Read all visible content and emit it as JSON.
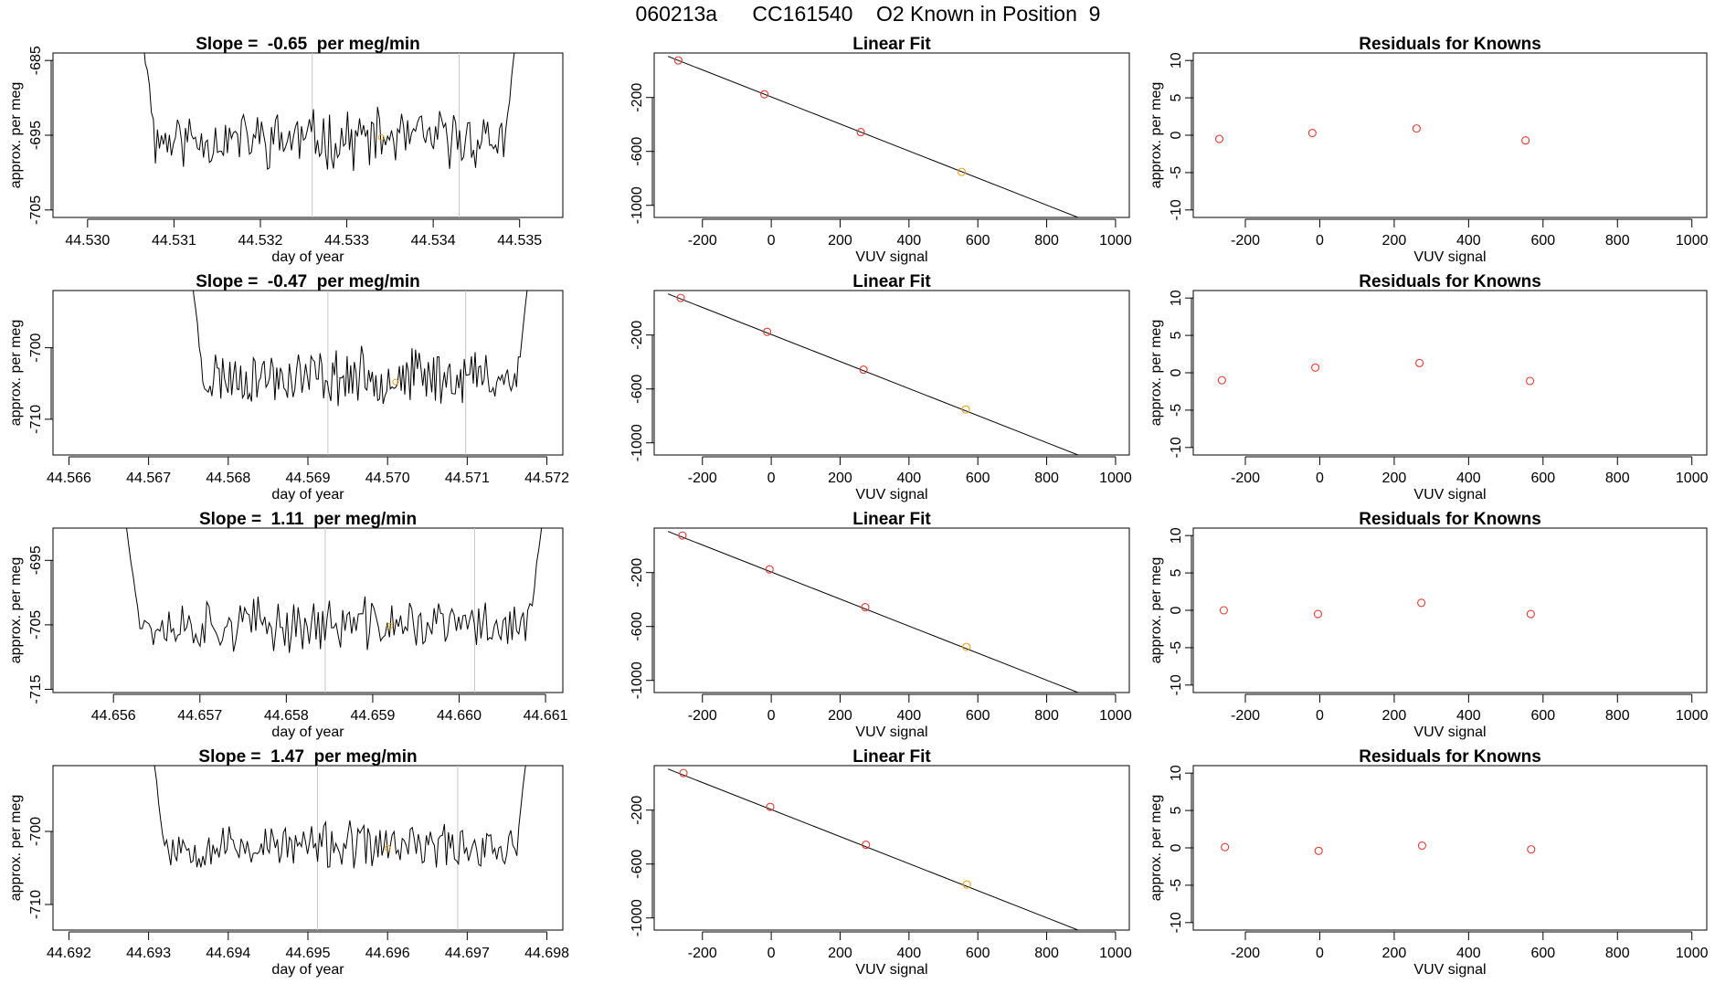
{
  "page_title": "060213a      CC161540    O2 Known in Position  9",
  "colors": {
    "trace": "#000000",
    "fit_point": "#e03c31",
    "unknown_point": "#e8a020",
    "marker_line": "#c8c8c8"
  },
  "chart_data": [
    {
      "type": "line",
      "id": "r1-timeseries",
      "title": "Slope =  -0.65  per meg/min",
      "xlabel": "day of year",
      "ylabel": "approx. per meg",
      "xlim": [
        44.5296,
        44.5355
      ],
      "ylim": [
        -706,
        -684
      ],
      "xticks": [
        "44.530",
        "44.531",
        "44.532",
        "44.533",
        "44.534",
        "44.535"
      ],
      "yticks": [
        "-685",
        "-695",
        "-705"
      ],
      "trace_start": 44.5306,
      "trace_end": 44.535,
      "base": -695.5,
      "noise": 3.2,
      "seed": 11,
      "markers": [
        44.5326,
        44.5343
      ],
      "unknown_point": [
        44.5334,
        -695.3
      ]
    },
    {
      "type": "scatter",
      "id": "r1-linear-fit",
      "title": "Linear Fit",
      "xlabel": "VUV signal",
      "ylabel": "",
      "xlim": [
        -340,
        1040
      ],
      "ylim": [
        -1090,
        130
      ],
      "xticks": [
        "-200",
        "0",
        "200",
        "400",
        "600",
        "800",
        "1000"
      ],
      "yticks": [
        "-200",
        "-600",
        "-1000"
      ],
      "points": [
        {
          "x": -270,
          "y": 75
        },
        {
          "x": -20,
          "y": -176
        },
        {
          "x": 260,
          "y": -457
        }
      ],
      "unknown": [
        {
          "x": 553,
          "y": -752
        }
      ],
      "fit_line": [
        {
          "x": -300,
          "y": 105
        },
        {
          "x": 1000,
          "y": -1199
        }
      ]
    },
    {
      "type": "scatter",
      "id": "r1-residuals",
      "title": "Residuals for Knowns",
      "xlabel": "VUV signal",
      "ylabel": "approx. per meg",
      "xlim": [
        -340,
        1040
      ],
      "ylim": [
        -11,
        11
      ],
      "xticks": [
        "-200",
        "0",
        "200",
        "400",
        "600",
        "800",
        "1000"
      ],
      "yticks": [
        "10",
        "5",
        "0",
        "-5",
        "-10"
      ],
      "points": [
        {
          "x": -270,
          "y": -0.5
        },
        {
          "x": -20,
          "y": 0.3
        },
        {
          "x": 260,
          "y": 0.9
        },
        {
          "x": 553,
          "y": -0.7
        }
      ]
    },
    {
      "type": "line",
      "id": "r2-timeseries",
      "title": "Slope =  -0.47  per meg/min",
      "xlabel": "day of year",
      "ylabel": "approx. per meg",
      "xlim": [
        44.5658,
        44.5722
      ],
      "ylim": [
        -715,
        -692
      ],
      "xticks": [
        "44.566",
        "44.567",
        "44.568",
        "44.569",
        "44.570",
        "44.571",
        "44.572"
      ],
      "yticks": [
        "-700",
        "-710"
      ],
      "trace_start": 44.5675,
      "trace_end": 44.5718,
      "base": -704,
      "noise": 3.2,
      "seed": 23,
      "markers": [
        44.56925,
        44.57098
      ],
      "unknown_point": [
        44.5701,
        -704.8
      ]
    },
    {
      "type": "scatter",
      "id": "r2-linear-fit",
      "title": "Linear Fit",
      "xlabel": "VUV signal",
      "ylabel": "",
      "xlim": [
        -340,
        1040
      ],
      "ylim": [
        -1090,
        130
      ],
      "xticks": [
        "-200",
        "0",
        "200",
        "400",
        "600",
        "800",
        "1000"
      ],
      "yticks": [
        "-200",
        "-600",
        "-1000"
      ],
      "points": [
        {
          "x": -263,
          "y": 75
        },
        {
          "x": -12,
          "y": -176
        },
        {
          "x": 268,
          "y": -457
        }
      ],
      "unknown": [
        {
          "x": 565,
          "y": -752
        }
      ],
      "fit_line": [
        {
          "x": -300,
          "y": 105
        },
        {
          "x": 1000,
          "y": -1199
        }
      ]
    },
    {
      "type": "scatter",
      "id": "r2-residuals",
      "title": "Residuals for Knowns",
      "xlabel": "VUV signal",
      "ylabel": "approx. per meg",
      "xlim": [
        -340,
        1040
      ],
      "ylim": [
        -11,
        11
      ],
      "xticks": [
        "-200",
        "0",
        "200",
        "400",
        "600",
        "800",
        "1000"
      ],
      "yticks": [
        "10",
        "5",
        "0",
        "-5",
        "-10"
      ],
      "points": [
        {
          "x": -263,
          "y": -1.0
        },
        {
          "x": -12,
          "y": 0.7
        },
        {
          "x": 268,
          "y": 1.3
        },
        {
          "x": 565,
          "y": -1.1
        }
      ]
    },
    {
      "type": "line",
      "id": "r3-timeseries",
      "title": "Slope =  1.11  per meg/min",
      "xlabel": "day of year",
      "ylabel": "approx. per meg",
      "xlim": [
        44.6553,
        44.6612
      ],
      "ylim": [
        -715.5,
        -690
      ],
      "xticks": [
        "44.656",
        "44.657",
        "44.658",
        "44.659",
        "44.660",
        "44.661"
      ],
      "yticks": [
        "-695",
        "-705",
        "-715"
      ],
      "trace_start": 44.6561,
      "trace_end": 44.661,
      "base": -705,
      "noise": 3.4,
      "seed": 37,
      "markers": [
        44.65845,
        44.66018
      ],
      "unknown_point": [
        44.6592,
        -705.2
      ]
    },
    {
      "type": "scatter",
      "id": "r3-linear-fit",
      "title": "Linear Fit",
      "xlabel": "VUV signal",
      "ylabel": "",
      "xlim": [
        -340,
        1040
      ],
      "ylim": [
        -1090,
        130
      ],
      "xticks": [
        "-200",
        "0",
        "200",
        "400",
        "600",
        "800",
        "1000"
      ],
      "yticks": [
        "-200",
        "-600",
        "-1000"
      ],
      "points": [
        {
          "x": -258,
          "y": 75
        },
        {
          "x": -5,
          "y": -176
        },
        {
          "x": 273,
          "y": -457
        }
      ],
      "unknown": [
        {
          "x": 567,
          "y": -752
        }
      ],
      "fit_line": [
        {
          "x": -300,
          "y": 105
        },
        {
          "x": 1000,
          "y": -1199
        }
      ]
    },
    {
      "type": "scatter",
      "id": "r3-residuals",
      "title": "Residuals for Knowns",
      "xlabel": "VUV signal",
      "ylabel": "approx. per meg",
      "xlim": [
        -340,
        1040
      ],
      "ylim": [
        -11,
        11
      ],
      "xticks": [
        "-200",
        "0",
        "200",
        "400",
        "600",
        "800",
        "1000"
      ],
      "yticks": [
        "10",
        "5",
        "0",
        "-5",
        "-10"
      ],
      "points": [
        {
          "x": -258,
          "y": 0.0
        },
        {
          "x": -5,
          "y": -0.5
        },
        {
          "x": 273,
          "y": 1.0
        },
        {
          "x": 567,
          "y": -0.5
        }
      ]
    },
    {
      "type": "line",
      "id": "r4-timeseries",
      "title": "Slope =  1.47  per meg/min",
      "xlabel": "day of year",
      "ylabel": "approx. per meg",
      "xlim": [
        44.6918,
        44.6982
      ],
      "ylim": [
        -713.5,
        -691
      ],
      "xticks": [
        "44.692",
        "44.693",
        "44.694",
        "44.695",
        "44.696",
        "44.697",
        "44.698"
      ],
      "yticks": [
        "-700",
        "-710"
      ],
      "trace_start": 44.693,
      "trace_end": 44.6978,
      "base": -702,
      "noise": 2.6,
      "seed": 53,
      "markers": [
        44.69512,
        44.69688
      ],
      "unknown_point": [
        44.696,
        -702.3
      ]
    },
    {
      "type": "scatter",
      "id": "r4-linear-fit",
      "title": "Linear Fit",
      "xlabel": "VUV signal",
      "ylabel": "",
      "xlim": [
        -340,
        1040
      ],
      "ylim": [
        -1090,
        130
      ],
      "xticks": [
        "-200",
        "0",
        "200",
        "400",
        "600",
        "800",
        "1000"
      ],
      "yticks": [
        "-200",
        "-600",
        "-1000"
      ],
      "points": [
        {
          "x": -255,
          "y": 75
        },
        {
          "x": -3,
          "y": -176
        },
        {
          "x": 275,
          "y": -457
        }
      ],
      "unknown": [
        {
          "x": 568,
          "y": -752
        }
      ],
      "fit_line": [
        {
          "x": -300,
          "y": 105
        },
        {
          "x": 1000,
          "y": -1199
        }
      ]
    },
    {
      "type": "scatter",
      "id": "r4-residuals",
      "title": "Residuals for Knowns",
      "xlabel": "VUV signal",
      "ylabel": "approx. per meg",
      "xlim": [
        -340,
        1040
      ],
      "ylim": [
        -11,
        11
      ],
      "xticks": [
        "-200",
        "0",
        "200",
        "400",
        "600",
        "800",
        "1000"
      ],
      "yticks": [
        "10",
        "5",
        "0",
        "-5",
        "-10"
      ],
      "points": [
        {
          "x": -255,
          "y": 0.1
        },
        {
          "x": -3,
          "y": -0.4
        },
        {
          "x": 275,
          "y": 0.3
        },
        {
          "x": 568,
          "y": -0.2
        }
      ]
    }
  ]
}
